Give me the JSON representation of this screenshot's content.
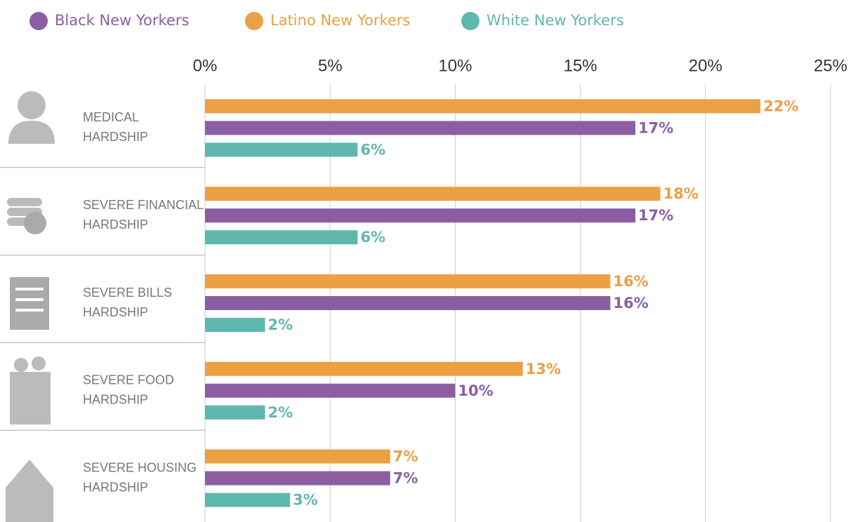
{
  "chart_data": {
    "type": "hbar",
    "categories": [
      [
        "MEDICAL",
        "HARDSHIP"
      ],
      [
        "SEVERE FINANCIAL",
        "HARDSHIP"
      ],
      [
        "SEVERE BILLS",
        "HARDSHIP"
      ],
      [
        "SEVERE FOOD",
        "HARDSHIP"
      ],
      [
        "SEVERE HOUSING",
        "HARDSHIP"
      ]
    ],
    "series": [
      {
        "name": "Black New Yorkers",
        "color": "#8b5ea3",
        "values": [
          17.2,
          17.2,
          16.2,
          10.0,
          7.4
        ],
        "value_labels": [
          "17%",
          "17%",
          "16%",
          "10%",
          "7%"
        ]
      },
      {
        "name": "Latino New Yorkers",
        "color": "#eba043",
        "values": [
          22.2,
          18.2,
          16.2,
          12.7,
          7.4
        ],
        "value_labels": [
          "22%",
          "18%",
          "16%",
          "13%",
          "7%"
        ]
      },
      {
        "name": "White New Yorkers",
        "color": "#5fb8ad",
        "values": [
          6.1,
          6.1,
          2.4,
          2.4,
          3.4
        ],
        "value_labels": [
          "6%",
          "6%",
          "2%",
          "2%",
          "3%"
        ]
      }
    ],
    "xlim": [
      0,
      25
    ],
    "xticks": [
      {
        "value": 0,
        "label": "0%"
      },
      {
        "value": 5,
        "label": "5%"
      },
      {
        "value": 10,
        "label": "10%"
      },
      {
        "value": 15,
        "label": "15%"
      },
      {
        "value": 20,
        "label": "20%"
      },
      {
        "value": 25,
        "label": "25%"
      }
    ],
    "grid": true,
    "legend": "top"
  }
}
